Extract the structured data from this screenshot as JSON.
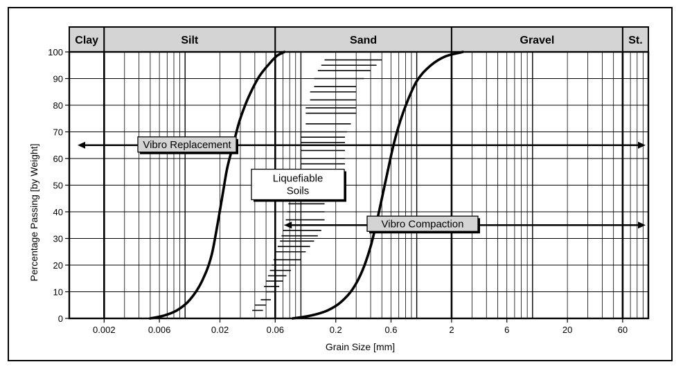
{
  "chart_data": {
    "type": "line",
    "xlabel": "Grain Size [mm]",
    "ylabel": "Percentage Passing [by Weight]",
    "xscale": "log",
    "xlim": [
      0.001,
      100
    ],
    "ylim": [
      0,
      100
    ],
    "x_ticks": [
      {
        "value": 0.002,
        "label": "0.002"
      },
      {
        "value": 0.006,
        "label": "0.006"
      },
      {
        "value": 0.02,
        "label": "0.02"
      },
      {
        "value": 0.06,
        "label": "0.06"
      },
      {
        "value": 0.2,
        "label": "0.2"
      },
      {
        "value": 0.6,
        "label": "0.6"
      },
      {
        "value": 2,
        "label": "2"
      },
      {
        "value": 6,
        "label": "6"
      },
      {
        "value": 20,
        "label": "20"
      },
      {
        "value": 60,
        "label": "60"
      }
    ],
    "y_ticks": [
      0,
      10,
      20,
      30,
      40,
      50,
      60,
      70,
      80,
      90,
      100
    ],
    "grid": true,
    "soil_bands": [
      {
        "label": "Clay",
        "from": 0.001,
        "to": 0.002
      },
      {
        "label": "Silt",
        "from": 0.002,
        "to": 0.06
      },
      {
        "label": "Sand",
        "from": 0.06,
        "to": 2
      },
      {
        "label": "Gravel",
        "from": 2,
        "to": 60
      },
      {
        "label": "St.",
        "from": 60,
        "to": 100
      }
    ],
    "series": [
      {
        "x": [
          0.005,
          0.0065,
          0.0085,
          0.011,
          0.014,
          0.017,
          0.019,
          0.021,
          0.023,
          0.026,
          0.029,
          0.033,
          0.038,
          0.044,
          0.052,
          0.062,
          0.072
        ],
        "y": [
          0,
          1,
          3,
          7,
          14,
          24,
          35,
          46,
          56,
          65,
          73,
          80,
          86,
          91,
          95,
          98.5,
          100
        ]
      },
      {
        "x": [
          0.085,
          0.12,
          0.17,
          0.22,
          0.28,
          0.34,
          0.4,
          0.45,
          0.5,
          0.56,
          0.63,
          0.72,
          0.84,
          1.0,
          1.25,
          1.7,
          2.5
        ],
        "y": [
          0,
          1,
          3,
          6,
          11,
          18,
          27,
          36,
          45,
          55,
          65,
          74,
          82,
          89,
          94,
          98,
          100
        ]
      }
    ],
    "liquefiable_band": [
      {
        "y": 3,
        "x1": 0.038,
        "x2": 0.047
      },
      {
        "y": 5,
        "x1": 0.04,
        "x2": 0.05
      },
      {
        "y": 7,
        "x1": 0.045,
        "x2": 0.055
      },
      {
        "y": 10,
        "x1": 0.05,
        "x2": 0.06
      },
      {
        "y": 12,
        "x1": 0.048,
        "x2": 0.065
      },
      {
        "y": 14,
        "x1": 0.05,
        "x2": 0.07
      },
      {
        "y": 16,
        "x1": 0.052,
        "x2": 0.075
      },
      {
        "y": 18,
        "x1": 0.054,
        "x2": 0.082
      },
      {
        "y": 20,
        "x1": 0.056,
        "x2": 0.09
      },
      {
        "y": 22,
        "x1": 0.058,
        "x2": 0.1
      },
      {
        "y": 25,
        "x1": 0.06,
        "x2": 0.11
      },
      {
        "y": 27,
        "x1": 0.063,
        "x2": 0.12
      },
      {
        "y": 29,
        "x1": 0.066,
        "x2": 0.13
      },
      {
        "y": 31,
        "x1": 0.068,
        "x2": 0.14
      },
      {
        "y": 33,
        "x1": 0.07,
        "x2": 0.15
      },
      {
        "y": 35,
        "x1": 0.072,
        "x2": 0.16
      },
      {
        "y": 37,
        "x1": 0.074,
        "x2": 0.16
      },
      {
        "y": 40,
        "x1": 0.076,
        "x2": 0.16
      },
      {
        "y": 43,
        "x1": 0.078,
        "x2": 0.16
      },
      {
        "y": 58,
        "x1": 0.1,
        "x2": 0.24
      },
      {
        "y": 60,
        "x1": 0.1,
        "x2": 0.24
      },
      {
        "y": 63,
        "x1": 0.1,
        "x2": 0.24
      },
      {
        "y": 66,
        "x1": 0.1,
        "x2": 0.24
      },
      {
        "y": 68,
        "x1": 0.1,
        "x2": 0.24
      },
      {
        "y": 70,
        "x1": 0.1,
        "x2": 0.25
      },
      {
        "y": 73,
        "x1": 0.11,
        "x2": 0.27
      },
      {
        "y": 77,
        "x1": 0.11,
        "x2": 0.3
      },
      {
        "y": 79,
        "x1": 0.11,
        "x2": 0.3
      },
      {
        "y": 82,
        "x1": 0.12,
        "x2": 0.3
      },
      {
        "y": 85,
        "x1": 0.12,
        "x2": 0.3
      },
      {
        "y": 87,
        "x1": 0.13,
        "x2": 0.3
      },
      {
        "y": 90,
        "x1": 0.13,
        "x2": 0.35
      },
      {
        "y": 93,
        "x1": 0.14,
        "x2": 0.4
      },
      {
        "y": 95,
        "x1": 0.15,
        "x2": 0.45
      },
      {
        "y": 97,
        "x1": 0.16,
        "x2": 0.5
      }
    ],
    "annotations": [
      {
        "name": "vibro-replacement",
        "text": "Vibro Replacement",
        "y": 65,
        "from": 0.001,
        "to": 100
      },
      {
        "name": "vibro-compaction",
        "text": "Vibro Compaction",
        "y": 35,
        "from": 0.08,
        "to": 100
      },
      {
        "name": "liquefiable-soils",
        "text": "Liquefiable\nSoils",
        "y": 50,
        "x": 0.085
      }
    ]
  }
}
